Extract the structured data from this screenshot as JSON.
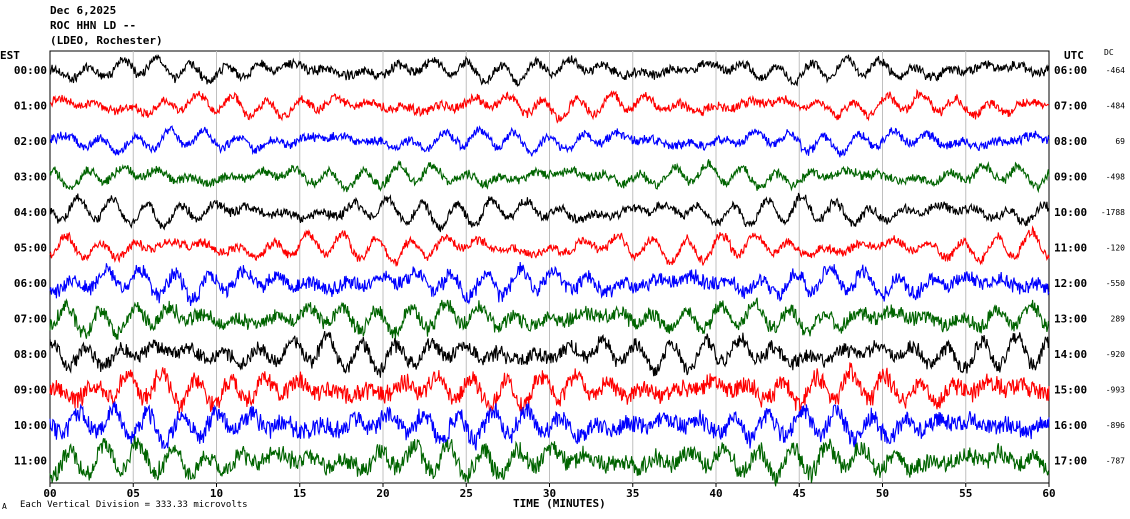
{
  "header": {
    "date": "Dec 6,2025",
    "station": "ROC HHN LD --",
    "network": "(LDEO, Rochester)"
  },
  "left_axis_title": "EST",
  "right_axis_title": "UTC",
  "dc_title": "DC",
  "footer": {
    "scale_note": "Each Vertical Division = 333.33 microvolts",
    "logo_mark": "A"
  },
  "colors": {
    "black": "#000000",
    "red": "#ff0000",
    "blue": "#0000ff",
    "green": "#006400",
    "grid": "#c0c0c0"
  },
  "chart_data": {
    "type": "line",
    "title": "",
    "xlabel": "TIME (MINUTES)",
    "xlim": [
      0,
      60
    ],
    "x_ticks": [
      "00",
      "05",
      "10",
      "15",
      "20",
      "25",
      "30",
      "35",
      "40",
      "45",
      "50",
      "55",
      "60"
    ],
    "x_tick_values": [
      0,
      5,
      10,
      15,
      20,
      25,
      30,
      35,
      40,
      45,
      50,
      55,
      60
    ],
    "rows": [
      {
        "est": "00:00",
        "utc": "06:00",
        "dc": "-464",
        "color": "black"
      },
      {
        "est": "01:00",
        "utc": "07:00",
        "dc": "-484",
        "color": "red"
      },
      {
        "est": "02:00",
        "utc": "08:00",
        "dc": "69",
        "color": "blue"
      },
      {
        "est": "03:00",
        "utc": "09:00",
        "dc": "-498",
        "color": "green"
      },
      {
        "est": "04:00",
        "utc": "10:00",
        "dc": "-1788",
        "color": "black"
      },
      {
        "est": "05:00",
        "utc": "11:00",
        "dc": "-120",
        "color": "red"
      },
      {
        "est": "06:00",
        "utc": "12:00",
        "dc": "-550",
        "color": "blue"
      },
      {
        "est": "07:00",
        "utc": "13:00",
        "dc": "289",
        "color": "green"
      },
      {
        "est": "08:00",
        "utc": "14:00",
        "dc": "-920",
        "color": "black"
      },
      {
        "est": "09:00",
        "utc": "15:00",
        "dc": "-993",
        "color": "red"
      },
      {
        "est": "10:00",
        "utc": "16:00",
        "dc": "-896",
        "color": "blue"
      },
      {
        "est": "11:00",
        "utc": "17:00",
        "dc": "-787",
        "color": "green"
      }
    ]
  }
}
